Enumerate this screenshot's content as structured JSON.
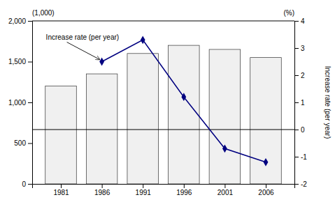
{
  "chart_data": {
    "type": "bar",
    "x": [
      1981,
      1986,
      1991,
      1996,
      2001,
      2006
    ],
    "xlim": [
      1977.5,
      2009.5
    ],
    "xticks": [
      1981,
      1986,
      1991,
      1996,
      2001,
      2006
    ],
    "ylim": [
      0,
      2000
    ],
    "yticks": [
      0,
      500,
      {
        "value": 1000,
        "label": "1,000"
      },
      {
        "value": 1500,
        "label": "1,500"
      },
      {
        "value": 2000,
        "label": "2,000"
      }
    ],
    "y2lim": [
      -2,
      4
    ],
    "y2ticks": [
      -2,
      -1,
      0,
      1,
      2,
      3,
      4
    ],
    "y_unit": "(1,000)",
    "y2_unit": "(%)",
    "y2_label": "Increase rate (per year)",
    "grid": false,
    "series": [
      {
        "type": "bar",
        "color": "#f0f0f0",
        "values": [
          1200,
          1350,
          1600,
          1700,
          1650,
          1550
        ]
      },
      {
        "type": "line",
        "axis": "y2",
        "color": "#000080",
        "marker": "diamond",
        "x": [
          1986,
          1991,
          1996,
          2001,
          2006
        ],
        "values": [
          2.5,
          3.3,
          1.2,
          -0.7,
          -1.2
        ]
      }
    ],
    "annotations": [
      {
        "text": "Increase rate (per year)",
        "x": 1986,
        "y": 2.5,
        "axis": "y2"
      }
    ]
  }
}
